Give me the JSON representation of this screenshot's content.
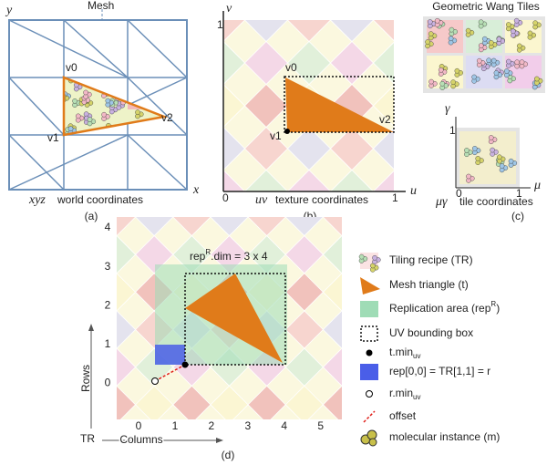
{
  "panel_a": {
    "mesh_label": "Mesh",
    "y_axis": "y",
    "x_axis": "x",
    "vertices": [
      "v0",
      "v1",
      "v2"
    ],
    "coords_symbol": "xyz",
    "coords_text": "world coordinates",
    "caption": "(a)"
  },
  "panel_b": {
    "v_axis": "v",
    "u_axis": "u",
    "ticks": [
      "1",
      "0",
      "1"
    ],
    "vertices": [
      "v0",
      "v1",
      "v2"
    ],
    "coords_symbol": "uv",
    "coords_text": "texture coordinates",
    "caption": "(b)"
  },
  "panel_c": {
    "title": "Geometric Wang Tiles",
    "gamma_axis": "γ",
    "mu_axis": "μ",
    "ticks": [
      "1",
      "0",
      "1"
    ],
    "coords_symbol": "μγ",
    "coords_text": "tile coordinates",
    "caption": "(c)"
  },
  "panel_d": {
    "dim_label": {
      "base": "rep",
      "sup": "R",
      "rest": ".dim = 3 x 4"
    },
    "row_labels": [
      "4",
      "3",
      "2",
      "1",
      "0"
    ],
    "column_labels": [
      "0",
      "1",
      "2",
      "3",
      "4",
      "5"
    ],
    "rows_title": "Rows",
    "columns_title": "Columns",
    "origin_label": "TR",
    "caption": "(d)"
  },
  "legend": [
    {
      "text": "Tiling recipe (TR)"
    },
    {
      "text": "Mesh triangle (t)"
    },
    {
      "text": "Replication area (rep",
      "sup": "R",
      "after": ")"
    },
    {
      "text": "UV bounding box"
    },
    {
      "text": "t.min",
      "sub": "uv"
    },
    {
      "text": "rep[0,0] = TR[1,1] = r"
    },
    {
      "text": "r.min",
      "sub": "uv"
    },
    {
      "text": "offset"
    },
    {
      "text": "molecular instance (m)"
    }
  ]
}
